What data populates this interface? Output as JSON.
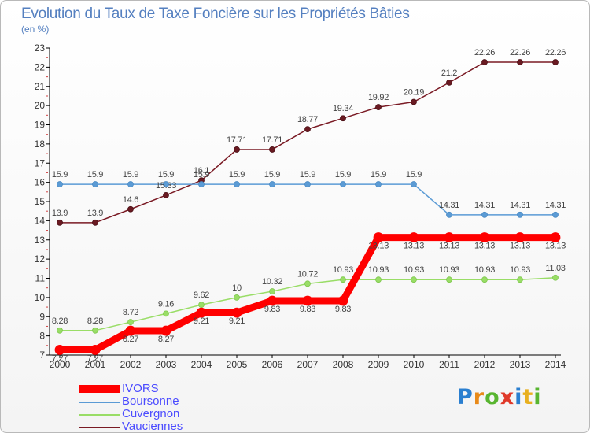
{
  "header": {
    "title": "Evolution du Taux de Taxe Foncière sur les Propriétés Bâties",
    "unit": "(en %)"
  },
  "brand": {
    "logo_text": "Proxiti"
  },
  "chart_data": {
    "type": "line",
    "title": "Evolution du Taux de Taxe Foncière sur les Propriétés Bâties",
    "ylabel": "(en %)",
    "xlabel": "",
    "x": [
      "2000",
      "2001",
      "2002",
      "2003",
      "2004",
      "2005",
      "2006",
      "2007",
      "2008",
      "2009",
      "2010",
      "2011",
      "2012",
      "2013",
      "2014"
    ],
    "ylim": [
      7,
      23
    ],
    "yticks": [
      7,
      8,
      9,
      10,
      11,
      12,
      13,
      14,
      15,
      16,
      17,
      18,
      19,
      20,
      21,
      22,
      23
    ],
    "grid": false,
    "legend_position": "bottom-left",
    "series": [
      {
        "name": "IVORS",
        "color": "#ff0000",
        "values": [
          7.27,
          7.27,
          8.27,
          8.27,
          9.21,
          9.21,
          9.83,
          9.83,
          9.83,
          13.13,
          13.13,
          13.13,
          13.13,
          13.13,
          13.13
        ]
      },
      {
        "name": "Boursonne",
        "color": "#5b9bd5",
        "values": [
          15.9,
          15.9,
          15.9,
          15.9,
          15.9,
          15.9,
          15.9,
          15.9,
          15.9,
          15.9,
          15.9,
          14.31,
          14.31,
          14.31,
          14.31
        ]
      },
      {
        "name": "Cuvergnon",
        "color": "#99dd66",
        "values": [
          8.28,
          8.28,
          8.72,
          9.16,
          9.62,
          10,
          10.32,
          10.72,
          10.93,
          10.93,
          10.93,
          10.93,
          10.93,
          10.93,
          11.03
        ]
      },
      {
        "name": "Vauciennes",
        "color": "#7a1a24",
        "values": [
          13.9,
          13.9,
          14.6,
          15.33,
          16.1,
          17.71,
          17.71,
          18.77,
          19.34,
          19.92,
          20.19,
          21.2,
          22.26,
          22.26,
          22.26
        ]
      }
    ],
    "labels": {
      "IVORS": [
        "7.27",
        "7.27",
        "8.27",
        "8.27",
        "9.21",
        "9.21",
        "9.83",
        "9.83",
        "9.83",
        "13.13",
        "13.13",
        "13.13",
        "13.13",
        "13.13",
        "13.13"
      ],
      "Boursonne": [
        "15.9",
        "15.9",
        "15.9",
        "15.9",
        "15.9",
        "15.9",
        "15.9",
        "15.9",
        "15.9",
        "15.9",
        "15.9",
        "14.31",
        "14.31",
        "14.31",
        "14.31"
      ],
      "Cuvergnon": [
        "8.28",
        "8.28",
        "8.72",
        "9.16",
        "9.62",
        "10",
        "10.32",
        "10.72",
        "10.93",
        "10.93",
        "10.93",
        "10.93",
        "10.93",
        "10.93",
        "11.03"
      ],
      "Vauciennes": [
        "13.9",
        "13.9",
        "14.6",
        "15.33",
        "16.1",
        "17.71",
        "17.71",
        "18.77",
        "19.34",
        "19.92",
        "20.19",
        "21.2",
        "22.26",
        "22.26",
        "22.26"
      ]
    }
  }
}
